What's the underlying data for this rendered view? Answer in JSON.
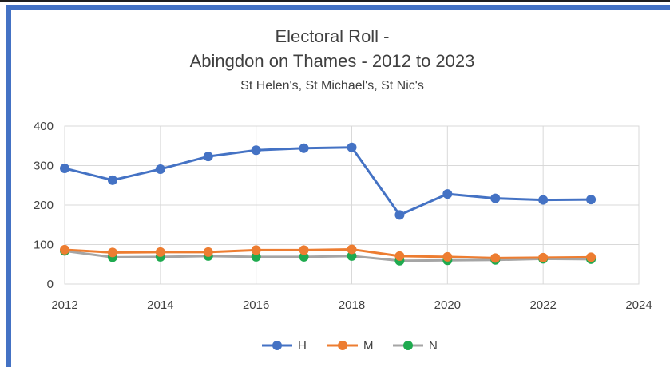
{
  "chart_data": {
    "type": "line",
    "title": "Electoral Roll -",
    "title_line2": "Abingdon on Thames - 2012 to 2023",
    "subtitle": "St Helen's, St Michael's,  St Nic's",
    "x": [
      2012,
      2013,
      2014,
      2015,
      2016,
      2017,
      2018,
      2019,
      2020,
      2021,
      2022,
      2023
    ],
    "xlim": [
      2012,
      2024
    ],
    "ylim": [
      0,
      400
    ],
    "xticks": [
      2012,
      2014,
      2016,
      2018,
      2020,
      2022,
      2024
    ],
    "yticks": [
      0,
      100,
      200,
      300,
      400
    ],
    "grid": true,
    "legend_position": "bottom",
    "series": [
      {
        "name": "H",
        "color": "#4472c4",
        "values": [
          293,
          263,
          291,
          323,
          339,
          344,
          346,
          175,
          228,
          217,
          213,
          214
        ]
      },
      {
        "name": "M",
        "color": "#ed7d31",
        "values": [
          87,
          80,
          81,
          81,
          86,
          86,
          88,
          71,
          69,
          66,
          67,
          68
        ]
      },
      {
        "name": "N",
        "color": "#a5a5a5",
        "marker_color": "#1faa4f",
        "values": [
          84,
          68,
          69,
          71,
          69,
          69,
          71,
          59,
          60,
          61,
          64,
          63
        ]
      }
    ]
  }
}
